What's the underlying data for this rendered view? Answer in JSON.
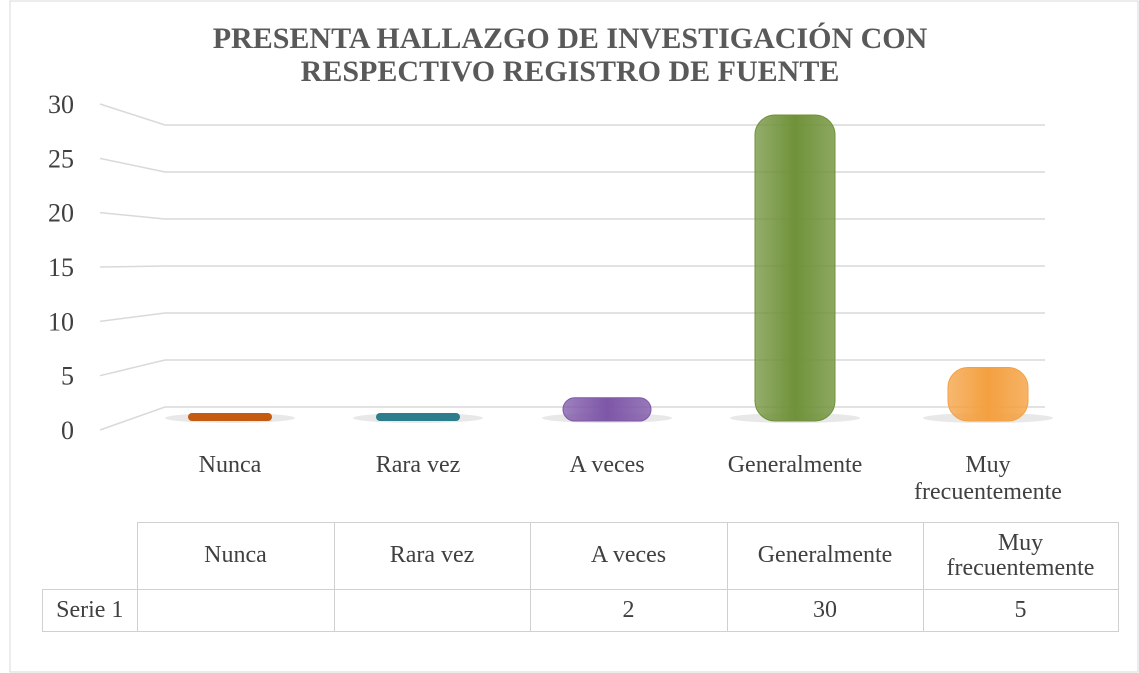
{
  "chart_data": {
    "type": "bar",
    "title": "PRESENTA HALLAZGO DE INVESTIGACIÓN CON RESPECTIVO REGISTRO DE FUENTE",
    "categories": [
      "Nunca",
      "Rara vez",
      "A veces",
      "Generalmente",
      "Muy frecuentemente"
    ],
    "series": [
      {
        "name": "Serie 1",
        "values": [
          null,
          null,
          2,
          30,
          5
        ],
        "colors": [
          "#c55a11",
          "#2e7d8c",
          "#7e57a8",
          "#70923a",
          "#f4a040"
        ]
      }
    ],
    "ylim": [
      0,
      30
    ],
    "yticks": [
      0,
      5,
      10,
      15,
      20,
      25,
      30
    ],
    "grid": true,
    "data_table": true
  }
}
